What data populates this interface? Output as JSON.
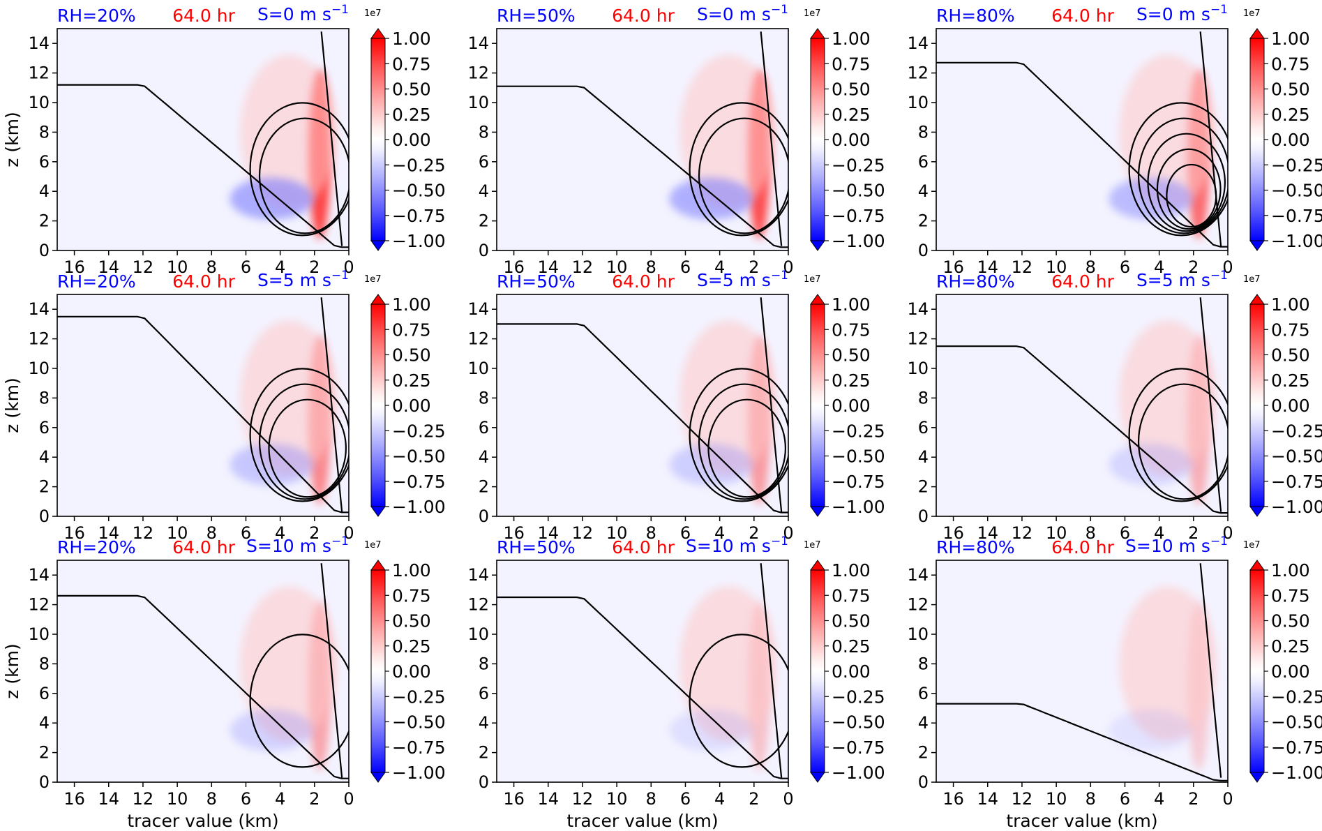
{
  "colors": {
    "rh_label": "#0000ff",
    "time_label": "#ff0000",
    "shear_label": "#0000ff",
    "contour": "#000000"
  },
  "colorbar": {
    "ticks": [
      "1.00",
      "0.75",
      "0.50",
      "0.25",
      "0.00",
      "−0.25",
      "−0.50",
      "−0.75",
      "−1.00"
    ],
    "multiplier": "1e7",
    "range": [
      -1.0,
      1.0
    ],
    "colormap": "bwr"
  },
  "chart_data": [
    {
      "type": "heatmap",
      "rh": "RH=20%",
      "time": "64.0 hr",
      "shear": "S=0 m s",
      "shear_exp": "−1",
      "xlabel": "",
      "ylabel": "z (km)",
      "xlim": [
        17,
        0
      ],
      "ylim": [
        0,
        15
      ],
      "xticks": [
        "16",
        "14",
        "12",
        "10",
        "8",
        "6",
        "4",
        "2",
        "0"
      ],
      "yticks": [
        "0",
        "2",
        "4",
        "6",
        "8",
        "10",
        "12",
        "14"
      ]
    },
    {
      "type": "heatmap",
      "rh": "RH=50%",
      "time": "64.0 hr",
      "shear": "S=0 m s",
      "shear_exp": "−1",
      "xlabel": "",
      "ylabel": "",
      "xlim": [
        17,
        0
      ],
      "ylim": [
        0,
        15
      ],
      "xticks": [
        "16",
        "14",
        "12",
        "10",
        "8",
        "6",
        "4",
        "2",
        "0"
      ],
      "yticks": [
        "0",
        "2",
        "4",
        "6",
        "8",
        "10",
        "12",
        "14"
      ]
    },
    {
      "type": "heatmap",
      "rh": "RH=80%",
      "time": "64.0 hr",
      "shear": "S=0 m s",
      "shear_exp": "−1",
      "xlabel": "",
      "ylabel": "",
      "xlim": [
        17,
        0
      ],
      "ylim": [
        0,
        15
      ],
      "xticks": [
        "16",
        "14",
        "12",
        "10",
        "8",
        "6",
        "4",
        "2",
        "0"
      ],
      "yticks": [
        "0",
        "2",
        "4",
        "6",
        "8",
        "10",
        "12",
        "14"
      ]
    },
    {
      "type": "heatmap",
      "rh": "RH=20%",
      "time": "64.0 hr",
      "shear": "S=5 m s",
      "shear_exp": "−1",
      "xlabel": "",
      "ylabel": "z (km)",
      "xlim": [
        17,
        0
      ],
      "ylim": [
        0,
        15
      ],
      "xticks": [
        "16",
        "14",
        "12",
        "10",
        "8",
        "6",
        "4",
        "2",
        "0"
      ],
      "yticks": [
        "0",
        "2",
        "4",
        "6",
        "8",
        "10",
        "12",
        "14"
      ]
    },
    {
      "type": "heatmap",
      "rh": "RH=50%",
      "time": "64.0 hr",
      "shear": "S=5 m s",
      "shear_exp": "−1",
      "xlabel": "",
      "ylabel": "",
      "xlim": [
        17,
        0
      ],
      "ylim": [
        0,
        15
      ],
      "xticks": [
        "16",
        "14",
        "12",
        "10",
        "8",
        "6",
        "4",
        "2",
        "0"
      ],
      "yticks": [
        "0",
        "2",
        "4",
        "6",
        "8",
        "10",
        "12",
        "14"
      ]
    },
    {
      "type": "heatmap",
      "rh": "RH=80%",
      "time": "64.0 hr",
      "shear": "S=5 m s",
      "shear_exp": "−1",
      "xlabel": "",
      "ylabel": "",
      "xlim": [
        17,
        0
      ],
      "ylim": [
        0,
        15
      ],
      "xticks": [
        "16",
        "14",
        "12",
        "10",
        "8",
        "6",
        "4",
        "2",
        "0"
      ],
      "yticks": [
        "0",
        "2",
        "4",
        "6",
        "8",
        "10",
        "12",
        "14"
      ]
    },
    {
      "type": "heatmap",
      "rh": "RH=20%",
      "time": "64.0 hr",
      "shear": "S=10 m s",
      "shear_exp": "−1",
      "xlabel": "tracer value (km)",
      "ylabel": "z (km)",
      "xlim": [
        17,
        0
      ],
      "ylim": [
        0,
        15
      ],
      "xticks": [
        "16",
        "14",
        "12",
        "10",
        "8",
        "6",
        "4",
        "2",
        "0"
      ],
      "yticks": [
        "0",
        "2",
        "4",
        "6",
        "8",
        "10",
        "12",
        "14"
      ]
    },
    {
      "type": "heatmap",
      "rh": "RH=50%",
      "time": "64.0 hr",
      "shear": "S=10 m s",
      "shear_exp": "−1",
      "xlabel": "tracer value (km)",
      "ylabel": "",
      "xlim": [
        17,
        0
      ],
      "ylim": [
        0,
        15
      ],
      "xticks": [
        "16",
        "14",
        "12",
        "10",
        "8",
        "6",
        "4",
        "2",
        "0"
      ],
      "yticks": [
        "0",
        "2",
        "4",
        "6",
        "8",
        "10",
        "12",
        "14"
      ]
    },
    {
      "type": "heatmap",
      "rh": "RH=80%",
      "time": "64.0 hr",
      "shear": "S=10 m s",
      "shear_exp": "−1",
      "xlabel": "tracer value (km)",
      "ylabel": "",
      "xlim": [
        17,
        0
      ],
      "ylim": [
        0,
        15
      ],
      "xticks": [
        "16",
        "14",
        "12",
        "10",
        "8",
        "6",
        "4",
        "2",
        "0"
      ],
      "yticks": [
        "0",
        "2",
        "4",
        "6",
        "8",
        "10",
        "12",
        "14"
      ]
    }
  ]
}
